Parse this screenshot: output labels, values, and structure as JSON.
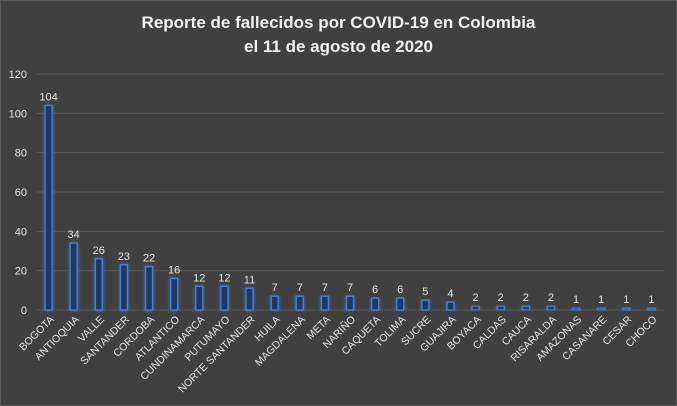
{
  "chart_data": {
    "type": "bar",
    "title": [
      "Reporte de fallecidos por COVID-19 en Colombia",
      "el 11 de agosto de 2020"
    ],
    "categories": [
      "BOGOTA",
      "ANTIOQUIA",
      "VALLE",
      "SANTANDER",
      "CORDOBA",
      "ATLANTICO",
      "CUNDINAMARCA",
      "PUTUMAYO",
      "NORTE SANTANDER",
      "HUILA",
      "MAGDALENA",
      "META",
      "NARIÑO",
      "CAQUETA",
      "TOLIMA",
      "SUCRE",
      "GUAJIRA",
      "BOYACA",
      "CALDAS",
      "CAUCA",
      "RISARALDA",
      "AMAZONAS",
      "CASANARE",
      "CESAR",
      "CHOCO"
    ],
    "values": [
      104,
      34,
      26,
      23,
      22,
      16,
      12,
      12,
      11,
      7,
      7,
      7,
      7,
      6,
      6,
      5,
      4,
      2,
      2,
      2,
      2,
      1,
      1,
      1,
      1
    ],
    "xlabel": "",
    "ylabel": "",
    "ylim": [
      0,
      120
    ],
    "yticks": [
      0,
      20,
      40,
      60,
      80,
      100,
      120
    ],
    "grid": true,
    "colors": {
      "background": "#404040",
      "grid": "#595959",
      "bar_fill": "#1f3864",
      "bar_edge": "#4a7fd4",
      "text": "#e6e6e6"
    }
  }
}
